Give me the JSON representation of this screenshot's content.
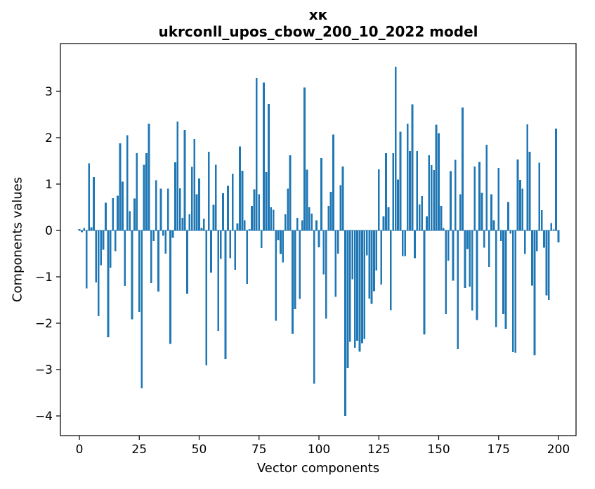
{
  "figure": {
    "suptitle": "хк",
    "title": "ukrconll_upos_cbow_200_10_2022 model",
    "xlabel": "Vector components",
    "ylabel": "Components values"
  },
  "chart_data": {
    "type": "bar",
    "title": "хк",
    "subtitle": "ukrconll_upos_cbow_200_10_2022 model",
    "xlabel": "Vector components",
    "ylabel": "Components values",
    "bar_color": "#1f77b4",
    "text_color": "#000000",
    "background": "#ffffff",
    "grid": false,
    "legend": "none",
    "x_ticks": [
      0,
      25,
      50,
      75,
      100,
      125,
      150,
      175,
      200
    ],
    "y_ticks": [
      -4,
      -3,
      -2,
      -1,
      0,
      1,
      2,
      3
    ],
    "xlim": [
      -8,
      208
    ],
    "ylim": [
      -4.42,
      4.03
    ],
    "x_start_index": 0,
    "n_components": 201,
    "values": [
      0.03,
      -0.04,
      0.05,
      -1.25,
      1.45,
      0.07,
      1.15,
      -1.12,
      -1.85,
      -0.75,
      -0.42,
      0.6,
      -2.3,
      -0.8,
      0.7,
      -0.45,
      0.75,
      1.88,
      1.05,
      -1.2,
      2.05,
      0.42,
      -1.92,
      0.69,
      1.67,
      -1.76,
      -3.4,
      1.42,
      1.67,
      2.3,
      -1.14,
      -0.23,
      1.08,
      -1.32,
      0.9,
      -0.11,
      -0.5,
      0.9,
      -2.45,
      -0.16,
      1.47,
      2.35,
      0.91,
      0.27,
      2.17,
      -1.36,
      0.35,
      1.37,
      1.97,
      0.78,
      1.12,
      0.05,
      0.25,
      -2.91,
      1.7,
      -0.91,
      0.55,
      1.42,
      -2.17,
      -0.61,
      0.8,
      -2.77,
      0.96,
      -0.6,
      1.22,
      -0.85,
      0.15,
      1.81,
      1.29,
      0.22,
      -1.15,
      0.03,
      0.53,
      0.89,
      3.29,
      0.78,
      -0.38,
      3.19,
      1.26,
      2.73,
      0.5,
      0.45,
      -1.95,
      -0.21,
      -0.51,
      -0.69,
      0.35,
      0.9,
      1.62,
      -2.23,
      -1.7,
      0.27,
      -1.48,
      0.22,
      3.08,
      1.31,
      0.5,
      0.36,
      -3.3,
      0.22,
      -0.36,
      1.56,
      -0.95,
      -1.9,
      0.53,
      0.83,
      2.07,
      -1.43,
      -0.5,
      0.98,
      1.38,
      -4.0,
      -2.97,
      -2.4,
      -1.05,
      -2.53,
      -2.38,
      -2.61,
      -2.43,
      -2.34,
      -0.54,
      -1.47,
      -1.58,
      -1.31,
      -0.86,
      1.32,
      -1.17,
      0.3,
      1.67,
      0.5,
      -1.72,
      1.67,
      3.53,
      1.1,
      2.13,
      -0.55,
      -0.55,
      2.3,
      1.71,
      2.72,
      -0.6,
      1.71,
      0.56,
      0.74,
      -2.24,
      0.3,
      1.62,
      1.41,
      1.3,
      2.28,
      2.1,
      0.53,
      0.05,
      -1.8,
      -0.65,
      1.28,
      -1.08,
      1.52,
      -2.56,
      0.78,
      2.65,
      -1.24,
      -0.4,
      -1.21,
      -1.73,
      1.38,
      -1.93,
      1.48,
      0.81,
      -0.37,
      1.85,
      -0.79,
      0.78,
      0.22,
      -2.08,
      1.35,
      -0.23,
      -1.8,
      -2.12,
      0.61,
      -0.07,
      -2.62,
      -2.64,
      1.53,
      1.09,
      0.9,
      -0.51,
      2.29,
      1.7,
      -1.19,
      -2.69,
      -0.45,
      1.46,
      0.44,
      -0.37,
      -1.4,
      -1.5,
      0.16,
      0.02,
      2.2,
      -0.26
    ]
  }
}
